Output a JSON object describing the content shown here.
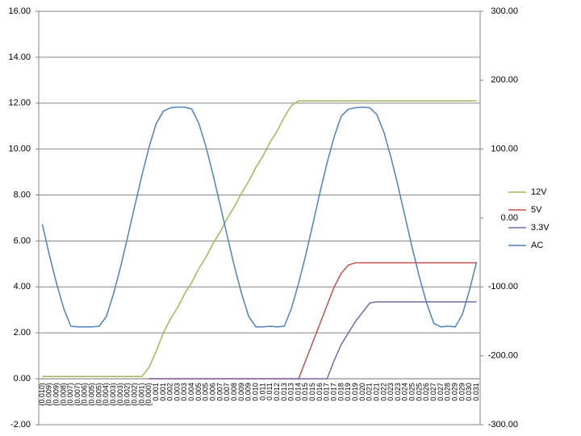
{
  "chart_data": {
    "type": "line",
    "categories": [
      "(0.010)",
      "(0.009)",
      "(0.009)",
      "(0.008)",
      "(0.007)",
      "(0.007)",
      "(0.006)",
      "(0.005)",
      "(0.005)",
      "(0.004)",
      "(0.003)",
      "(0.003)",
      "(0.002)",
      "(0.002)",
      "(0.001)",
      "(0.000)",
      "0.001",
      "0.001",
      "0.002",
      "0.003",
      "0.003",
      "0.004",
      "0.005",
      "0.005",
      "0.006",
      "0.007",
      "0.007",
      "0.008",
      "0.009",
      "0.009",
      "0.010",
      "0.011",
      "0.011",
      "0.012",
      "0.013",
      "0.013",
      "0.014",
      "0.015",
      "0.015",
      "0.016",
      "0.017",
      "0.017",
      "0.018",
      "0.019",
      "0.019",
      "0.020",
      "0.021",
      "0.021",
      "0.022",
      "0.023",
      "0.023",
      "0.024",
      "0.025",
      "0.025",
      "0.026",
      "0.027",
      "0.027",
      "0.028",
      "0.029",
      "0.029",
      "0.030",
      "0.031"
    ],
    "series": [
      {
        "name": "12V",
        "color": "#9bbb59",
        "values": [
          0.1,
          0.1,
          0.1,
          0.1,
          0.1,
          0.1,
          0.1,
          0.1,
          0.1,
          0.1,
          0.1,
          0.1,
          0.1,
          0.1,
          0.1,
          0.5,
          1.2,
          2.0,
          2.6,
          3.1,
          3.7,
          4.2,
          4.8,
          5.3,
          5.9,
          6.4,
          7.0,
          7.5,
          8.1,
          8.6,
          9.2,
          9.7,
          10.3,
          10.8,
          11.4,
          11.9,
          12.1,
          12.1,
          12.1,
          12.1,
          12.1,
          12.1,
          12.1,
          12.1,
          12.1,
          12.1,
          12.1,
          12.1,
          12.1,
          12.1,
          12.1,
          12.1,
          12.1,
          12.1,
          12.1,
          12.1,
          12.1,
          12.1,
          12.1,
          12.1,
          12.1,
          12.1
        ]
      },
      {
        "name": "5V",
        "color": "#c0504d",
        "values": [
          null,
          null,
          null,
          null,
          null,
          null,
          null,
          null,
          null,
          null,
          null,
          null,
          null,
          null,
          null,
          0,
          0,
          0,
          0,
          0,
          0,
          0,
          0,
          0,
          0,
          0,
          0,
          0,
          0,
          0,
          0,
          0,
          0,
          0,
          0,
          0,
          0,
          0.8,
          1.6,
          2.4,
          3.2,
          4.0,
          4.6,
          4.95,
          5.05,
          5.05,
          5.05,
          5.05,
          5.05,
          5.05,
          5.05,
          5.05,
          5.05,
          5.05,
          5.05,
          5.05,
          5.05,
          5.05,
          5.05,
          5.05,
          5.05,
          5.05
        ]
      },
      {
        "name": "3.3V",
        "color": "#8064a2",
        "values": [
          null,
          null,
          null,
          null,
          null,
          null,
          null,
          null,
          null,
          null,
          null,
          null,
          null,
          null,
          null,
          0,
          0,
          0,
          0,
          0,
          0,
          0,
          0,
          0,
          0,
          0,
          0,
          0,
          0,
          0,
          0,
          0,
          0,
          0,
          0,
          0,
          0,
          0,
          0,
          0,
          0,
          0.8,
          1.5,
          2.0,
          2.5,
          2.9,
          3.3,
          3.35,
          3.35,
          3.35,
          3.35,
          3.35,
          3.35,
          3.35,
          3.35,
          3.35,
          3.35,
          3.35,
          3.35,
          3.35,
          3.35,
          3.35
        ]
      },
      {
        "name": "AC",
        "color": "#4f81bd",
        "axis": "y2",
        "values": [
          -9,
          -54,
          -95,
          -131,
          -157,
          -158,
          -158,
          -158,
          -157,
          -143,
          -110,
          -71,
          -27,
          18,
          62,
          103,
          137,
          155,
          160,
          161,
          161,
          158,
          137,
          103,
          62,
          18,
          -27,
          -71,
          -110,
          -143,
          -158,
          -158,
          -157,
          -158,
          -157,
          -131,
          -95,
          -54,
          -9,
          37,
          80,
          118,
          148,
          158,
          160,
          161,
          160,
          150,
          124,
          87,
          45,
          0,
          -45,
          -87,
          -124,
          -153,
          -158,
          -157,
          -158,
          -140,
          -105,
          -64
        ]
      }
    ],
    "ylim": [
      -2,
      16
    ],
    "yticks": [
      {
        "value": -2,
        "label": "-2.00"
      },
      {
        "value": 0,
        "label": "0.00"
      },
      {
        "value": 2,
        "label": "2.00"
      },
      {
        "value": 4,
        "label": "4.00"
      },
      {
        "value": 6,
        "label": "6.00"
      },
      {
        "value": 8,
        "label": "8.00"
      },
      {
        "value": 10,
        "label": "10.00"
      },
      {
        "value": 12,
        "label": "12.00"
      },
      {
        "value": 14,
        "label": "14.00"
      },
      {
        "value": 16,
        "label": "16.00"
      }
    ],
    "y2lim": [
      -300,
      300
    ],
    "y2ticks": [
      {
        "value": -300,
        "label": "-300.00"
      },
      {
        "value": -200,
        "label": "-200.00"
      },
      {
        "value": -100,
        "label": "-100.00"
      },
      {
        "value": 0,
        "label": "0.00"
      },
      {
        "value": 100,
        "label": "100.00"
      },
      {
        "value": 200,
        "label": "200.00"
      },
      {
        "value": 300,
        "label": "300.00"
      }
    ],
    "grid": true,
    "legend": "right"
  }
}
